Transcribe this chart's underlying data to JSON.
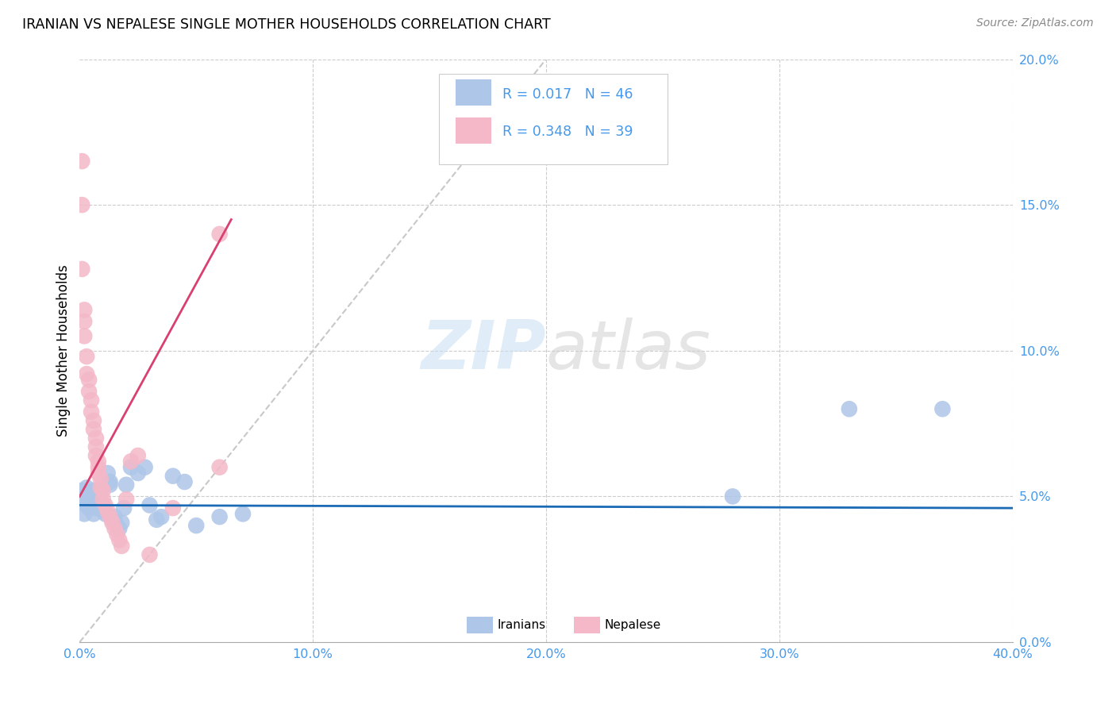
{
  "title": "IRANIAN VS NEPALESE SINGLE MOTHER HOUSEHOLDS CORRELATION CHART",
  "source": "Source: ZipAtlas.com",
  "ylabel": "Single Mother Households",
  "xlim": [
    0.0,
    0.4
  ],
  "ylim": [
    0.0,
    0.2
  ],
  "iranian_color": "#aec6e8",
  "nepalese_color": "#f4b8c8",
  "iranian_line_color": "#1a6ab5",
  "nepalese_line_color": "#d94070",
  "diagonal_color": "#c8c8c8",
  "tick_color": "#4499ee",
  "iranians_x": [
    0.001,
    0.001,
    0.002,
    0.002,
    0.003,
    0.003,
    0.003,
    0.004,
    0.004,
    0.005,
    0.005,
    0.006,
    0.006,
    0.007,
    0.007,
    0.008,
    0.008,
    0.009,
    0.009,
    0.01,
    0.01,
    0.011,
    0.012,
    0.013,
    0.013,
    0.014,
    0.015,
    0.016,
    0.017,
    0.018,
    0.019,
    0.02,
    0.022,
    0.025,
    0.028,
    0.03,
    0.033,
    0.035,
    0.04,
    0.045,
    0.05,
    0.06,
    0.07,
    0.28,
    0.33,
    0.37
  ],
  "iranians_y": [
    0.048,
    0.052,
    0.05,
    0.044,
    0.053,
    0.05,
    0.047,
    0.049,
    0.046,
    0.051,
    0.048,
    0.044,
    0.052,
    0.05,
    0.046,
    0.049,
    0.047,
    0.052,
    0.048,
    0.045,
    0.047,
    0.044,
    0.058,
    0.055,
    0.054,
    0.042,
    0.043,
    0.04,
    0.039,
    0.041,
    0.046,
    0.054,
    0.06,
    0.058,
    0.06,
    0.047,
    0.042,
    0.043,
    0.057,
    0.055,
    0.04,
    0.043,
    0.044,
    0.05,
    0.08,
    0.08
  ],
  "nepalese_x": [
    0.001,
    0.001,
    0.001,
    0.002,
    0.002,
    0.002,
    0.003,
    0.003,
    0.004,
    0.004,
    0.005,
    0.005,
    0.006,
    0.006,
    0.007,
    0.007,
    0.007,
    0.008,
    0.008,
    0.008,
    0.009,
    0.009,
    0.01,
    0.01,
    0.011,
    0.012,
    0.013,
    0.014,
    0.015,
    0.016,
    0.017,
    0.018,
    0.02,
    0.022,
    0.025,
    0.03,
    0.04,
    0.06,
    0.06
  ],
  "nepalese_y": [
    0.165,
    0.15,
    0.128,
    0.114,
    0.11,
    0.105,
    0.098,
    0.092,
    0.09,
    0.086,
    0.083,
    0.079,
    0.076,
    0.073,
    0.07,
    0.067,
    0.064,
    0.062,
    0.06,
    0.058,
    0.056,
    0.053,
    0.052,
    0.049,
    0.047,
    0.045,
    0.043,
    0.041,
    0.039,
    0.037,
    0.035,
    0.033,
    0.049,
    0.062,
    0.064,
    0.03,
    0.046,
    0.14,
    0.06
  ],
  "iranian_line_x": [
    0.0,
    0.4
  ],
  "iranian_line_y": [
    0.047,
    0.046
  ],
  "nepalese_line_x": [
    0.0,
    0.065
  ],
  "nepalese_line_y": [
    0.05,
    0.145
  ]
}
